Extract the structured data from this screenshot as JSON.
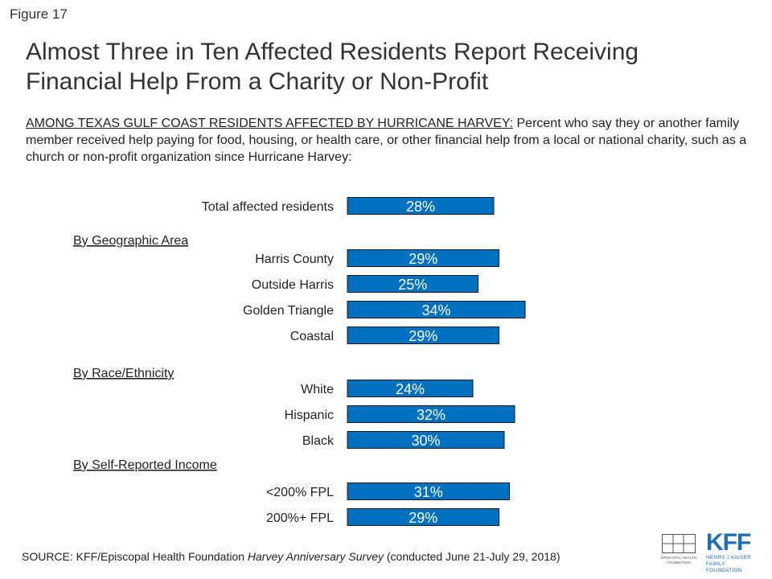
{
  "figure_label": "Figure 17",
  "title_line1": "Almost Three in Ten Affected Residents Report Receiving",
  "title_line2": "Financial Help From a Charity or Non-Profit",
  "subtitle_lead": "AMONG TEXAS GULF COAST RESIDENTS AFFECTED BY HURRICANE HARVEY:",
  "subtitle_rest": " Percent who say they or another family member received help paying for food, housing, or health care, or other financial help from a local or national charity, such as a church or non-profit organization since Hurricane Harvey:",
  "source_prefix": "SOURCE: KFF/Episcopal Health Foundation ",
  "source_survey": "Harvey Anniversary Survey",
  "source_suffix": " (conducted June 21-July 29, 2018)",
  "logos": {
    "ehf_text_1": "EPISCOPAL HEALTH",
    "ehf_text_2": "FOUNDATION",
    "kff_mark": "KFF",
    "kff_sub_1": "HENRY J KAISER",
    "kff_sub_2": "FAMILY FOUNDATION"
  },
  "colors": {
    "bar": "#0070c0",
    "bar_outline": "#1a1a1a",
    "bar_label": "#ffffff"
  },
  "chart_data": {
    "type": "bar",
    "orientation": "horizontal",
    "value_suffix": "%",
    "xlim": [
      0,
      40
    ],
    "rows": [
      {
        "kind": "bar",
        "label": "Total affected residents",
        "value": 28
      },
      {
        "kind": "heading",
        "label": "By Geographic Area"
      },
      {
        "kind": "bar",
        "label": "Harris County",
        "value": 29
      },
      {
        "kind": "bar",
        "label": "Outside Harris",
        "value": 25
      },
      {
        "kind": "bar",
        "label": "Golden Triangle",
        "value": 34
      },
      {
        "kind": "bar",
        "label": "Coastal",
        "value": 29
      },
      {
        "kind": "heading",
        "label": "By Race/Ethnicity"
      },
      {
        "kind": "bar",
        "label": "White",
        "value": 24
      },
      {
        "kind": "bar",
        "label": "Hispanic",
        "value": 32
      },
      {
        "kind": "bar",
        "label": "Black",
        "value": 30
      },
      {
        "kind": "heading",
        "label": "By Self-Reported Income"
      },
      {
        "kind": "bar",
        "label": "<200% FPL",
        "value": 31
      },
      {
        "kind": "bar",
        "label": "200%+ FPL",
        "value": 29
      }
    ]
  }
}
